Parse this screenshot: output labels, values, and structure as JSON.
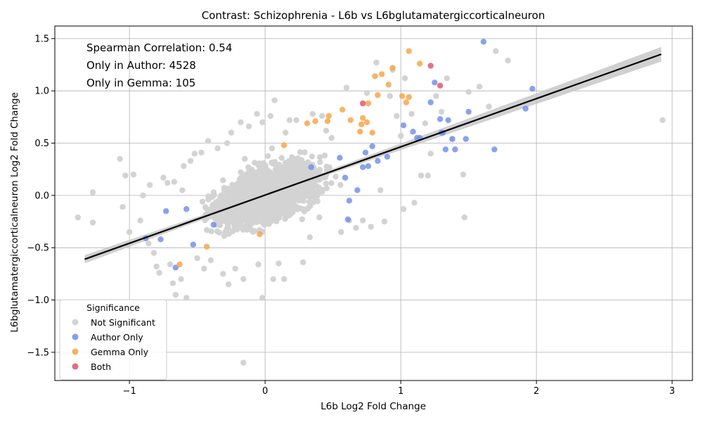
{
  "chart_data": {
    "type": "scatter",
    "title": "Contrast: Schizophrenia - L6b vs L6bglutamatergiccorticalneuron",
    "xlabel": "L6b Log2 Fold Change",
    "ylabel": "L6bglutamatergiccorticalneuron Log2 Fold Change",
    "xlim": [
      -1.55,
      3.15
    ],
    "ylim": [
      -1.77,
      1.62
    ],
    "xticks": [
      -1,
      0,
      1,
      2,
      3
    ],
    "yticks": [
      -1.5,
      -1.0,
      -0.5,
      0.0,
      0.5,
      1.0,
      1.5
    ],
    "grid": true,
    "annotations": [
      "Spearman Correlation: 0.54",
      "Only in Author: 4528",
      "Only in Gemma: 105"
    ],
    "legend": {
      "title": "Significance",
      "placement": "lower-left",
      "entries": [
        "Not Significant",
        "Author Only",
        "Gemma Only",
        "Both"
      ]
    },
    "colors": {
      "Not Significant": "#d3d3d3",
      "Author Only": "#6f8fe6",
      "Gemma Only": "#f5a446",
      "Both": "#e0506e",
      "fit_line": "#000000",
      "fit_band": "#c8c8c8",
      "grid": "#b0b0b0"
    },
    "fit_line": {
      "x": [
        -1.33,
        2.92
      ],
      "y": [
        -0.61,
        1.35
      ]
    },
    "series": [
      {
        "name": "Not Significant",
        "points": [
          [
            -1.38,
            -0.21
          ],
          [
            -1.27,
            0.03
          ],
          [
            -1.27,
            -0.26
          ],
          [
            -1.07,
            0.35
          ],
          [
            -1.05,
            -0.11
          ],
          [
            -1.03,
            0.19
          ],
          [
            -1.0,
            -0.35
          ],
          [
            -0.97,
            0.2
          ],
          [
            -0.92,
            -0.24
          ],
          [
            -0.9,
            0.0
          ],
          [
            -0.86,
            -0.46
          ],
          [
            -0.85,
            0.1
          ],
          [
            -0.82,
            -0.55
          ],
          [
            -0.8,
            -0.68
          ],
          [
            -0.78,
            -0.74
          ],
          [
            -0.75,
            0.17
          ],
          [
            -0.72,
            0.12
          ],
          [
            -0.7,
            -0.66
          ],
          [
            -0.68,
            -0.84
          ],
          [
            -0.67,
            0.13
          ],
          [
            -0.66,
            -0.95
          ],
          [
            -0.62,
            -0.8
          ],
          [
            -0.6,
            0.28
          ],
          [
            -0.58,
            -0.98
          ],
          [
            -0.55,
            0.33
          ],
          [
            -0.52,
            0.4
          ],
          [
            -0.5,
            -0.6
          ],
          [
            -0.47,
            0.41
          ],
          [
            -0.45,
            -0.7
          ],
          [
            -0.42,
            0.52
          ],
          [
            -0.4,
            -0.62
          ],
          [
            -0.35,
            0.45
          ],
          [
            -0.31,
            -0.75
          ],
          [
            -0.28,
            0.5
          ],
          [
            -0.27,
            -0.85
          ],
          [
            -0.25,
            0.6
          ],
          [
            -0.22,
            -0.7
          ],
          [
            -0.18,
            0.7
          ],
          [
            -0.16,
            -1.6
          ],
          [
            -0.16,
            -0.8
          ],
          [
            -0.12,
            0.66
          ],
          [
            -0.06,
            0.78
          ],
          [
            -0.05,
            -0.66
          ],
          [
            -0.02,
            -0.98
          ],
          [
            -0.02,
            0.7
          ],
          [
            0.04,
            0.76
          ],
          [
            0.06,
            -0.8
          ],
          [
            0.07,
            0.91
          ],
          [
            0.1,
            -0.65
          ],
          [
            0.14,
            -0.8
          ],
          [
            0.15,
            0.6
          ],
          [
            0.18,
            0.72
          ],
          [
            0.23,
            0.72
          ],
          [
            0.28,
            -0.64
          ],
          [
            0.35,
            0.78
          ],
          [
            0.42,
            0.76
          ],
          [
            0.45,
            0.62
          ],
          [
            0.49,
            0.55
          ],
          [
            0.56,
            -0.35
          ],
          [
            0.6,
            1.03
          ],
          [
            0.62,
            -0.24
          ],
          [
            0.67,
            -0.31
          ],
          [
            0.72,
            -0.24
          ],
          [
            0.75,
            0.98
          ],
          [
            0.78,
            -0.3
          ],
          [
            0.82,
            1.27
          ],
          [
            0.85,
            0.05
          ],
          [
            0.88,
            -0.25
          ],
          [
            0.92,
            0.95
          ],
          [
            0.94,
            1.2
          ],
          [
            0.97,
            0.76
          ],
          [
            1.0,
            0.57
          ],
          [
            1.02,
            -0.13
          ],
          [
            1.03,
            1.12
          ],
          [
            1.08,
            0.78
          ],
          [
            1.1,
            -0.07
          ],
          [
            1.15,
            0.19
          ],
          [
            1.18,
            0.69
          ],
          [
            1.2,
            0.19
          ],
          [
            1.22,
            0.4
          ],
          [
            1.26,
            0.95
          ],
          [
            1.3,
            0.8
          ],
          [
            1.34,
            1.12
          ],
          [
            1.38,
            0.54
          ],
          [
            1.46,
            0.2
          ],
          [
            1.47,
            -0.21
          ],
          [
            1.5,
            0.99
          ],
          [
            1.58,
            1.04
          ],
          [
            1.65,
            0.85
          ],
          [
            1.7,
            1.38
          ],
          [
            1.79,
            1.29
          ],
          [
            2.93,
            0.72
          ],
          [
            0.52,
            0.18
          ],
          [
            0.33,
            -0.4
          ],
          [
            -0.61,
            0.05
          ],
          [
            0.4,
            -0.21
          ],
          [
            -0.15,
            0.35
          ],
          [
            0.05,
            0.45
          ],
          [
            0.25,
            0.1
          ],
          [
            -0.4,
            -0.2
          ]
        ]
      },
      {
        "name": "Author Only",
        "points": [
          [
            -0.88,
            -0.41
          ],
          [
            -0.77,
            -0.42
          ],
          [
            -0.73,
            -0.15
          ],
          [
            -0.66,
            -0.69
          ],
          [
            -0.58,
            -0.13
          ],
          [
            -0.53,
            -0.47
          ],
          [
            -0.38,
            -0.28
          ],
          [
            0.34,
            0.27
          ],
          [
            0.55,
            0.36
          ],
          [
            0.59,
            0.17
          ],
          [
            0.61,
            -0.23
          ],
          [
            0.62,
            -0.05
          ],
          [
            0.68,
            0.05
          ],
          [
            0.72,
            0.27
          ],
          [
            0.74,
            0.41
          ],
          [
            0.76,
            0.28
          ],
          [
            0.79,
            0.47
          ],
          [
            0.83,
            0.33
          ],
          [
            0.9,
            0.37
          ],
          [
            1.02,
            0.67
          ],
          [
            1.09,
            0.61
          ],
          [
            1.12,
            0.55
          ],
          [
            1.14,
            0.55
          ],
          [
            1.22,
            0.89
          ],
          [
            1.25,
            1.08
          ],
          [
            1.29,
            0.73
          ],
          [
            1.3,
            0.6
          ],
          [
            1.31,
            0.6
          ],
          [
            1.33,
            0.44
          ],
          [
            1.35,
            0.72
          ],
          [
            1.38,
            0.54
          ],
          [
            1.4,
            0.44
          ],
          [
            1.48,
            0.54
          ],
          [
            1.5,
            0.8
          ],
          [
            1.61,
            1.47
          ],
          [
            1.69,
            0.44
          ],
          [
            1.92,
            0.83
          ],
          [
            1.97,
            1.02
          ]
        ]
      },
      {
        "name": "Gemma Only",
        "points": [
          [
            -0.63,
            -0.66
          ],
          [
            -0.43,
            -0.49
          ],
          [
            -0.04,
            -0.37
          ],
          [
            0.14,
            0.48
          ],
          [
            0.31,
            0.69
          ],
          [
            0.37,
            0.71
          ],
          [
            0.46,
            0.71
          ],
          [
            0.47,
            0.76
          ],
          [
            0.57,
            0.82
          ],
          [
            0.63,
            0.72
          ],
          [
            0.7,
            0.61
          ],
          [
            0.71,
            0.68
          ],
          [
            0.72,
            0.74
          ],
          [
            0.75,
            0.7
          ],
          [
            0.76,
            0.88
          ],
          [
            0.79,
            0.6
          ],
          [
            0.81,
            1.14
          ],
          [
            0.83,
            0.96
          ],
          [
            0.86,
            1.16
          ],
          [
            0.91,
            1.06
          ],
          [
            0.94,
            1.22
          ],
          [
            1.01,
            0.95
          ],
          [
            1.04,
            0.89
          ],
          [
            1.06,
            1.38
          ],
          [
            1.06,
            0.94
          ],
          [
            1.14,
            1.26
          ]
        ]
      },
      {
        "name": "Both",
        "points": [
          [
            0.72,
            0.88
          ],
          [
            1.22,
            1.24
          ],
          [
            1.29,
            1.05
          ]
        ]
      }
    ]
  }
}
